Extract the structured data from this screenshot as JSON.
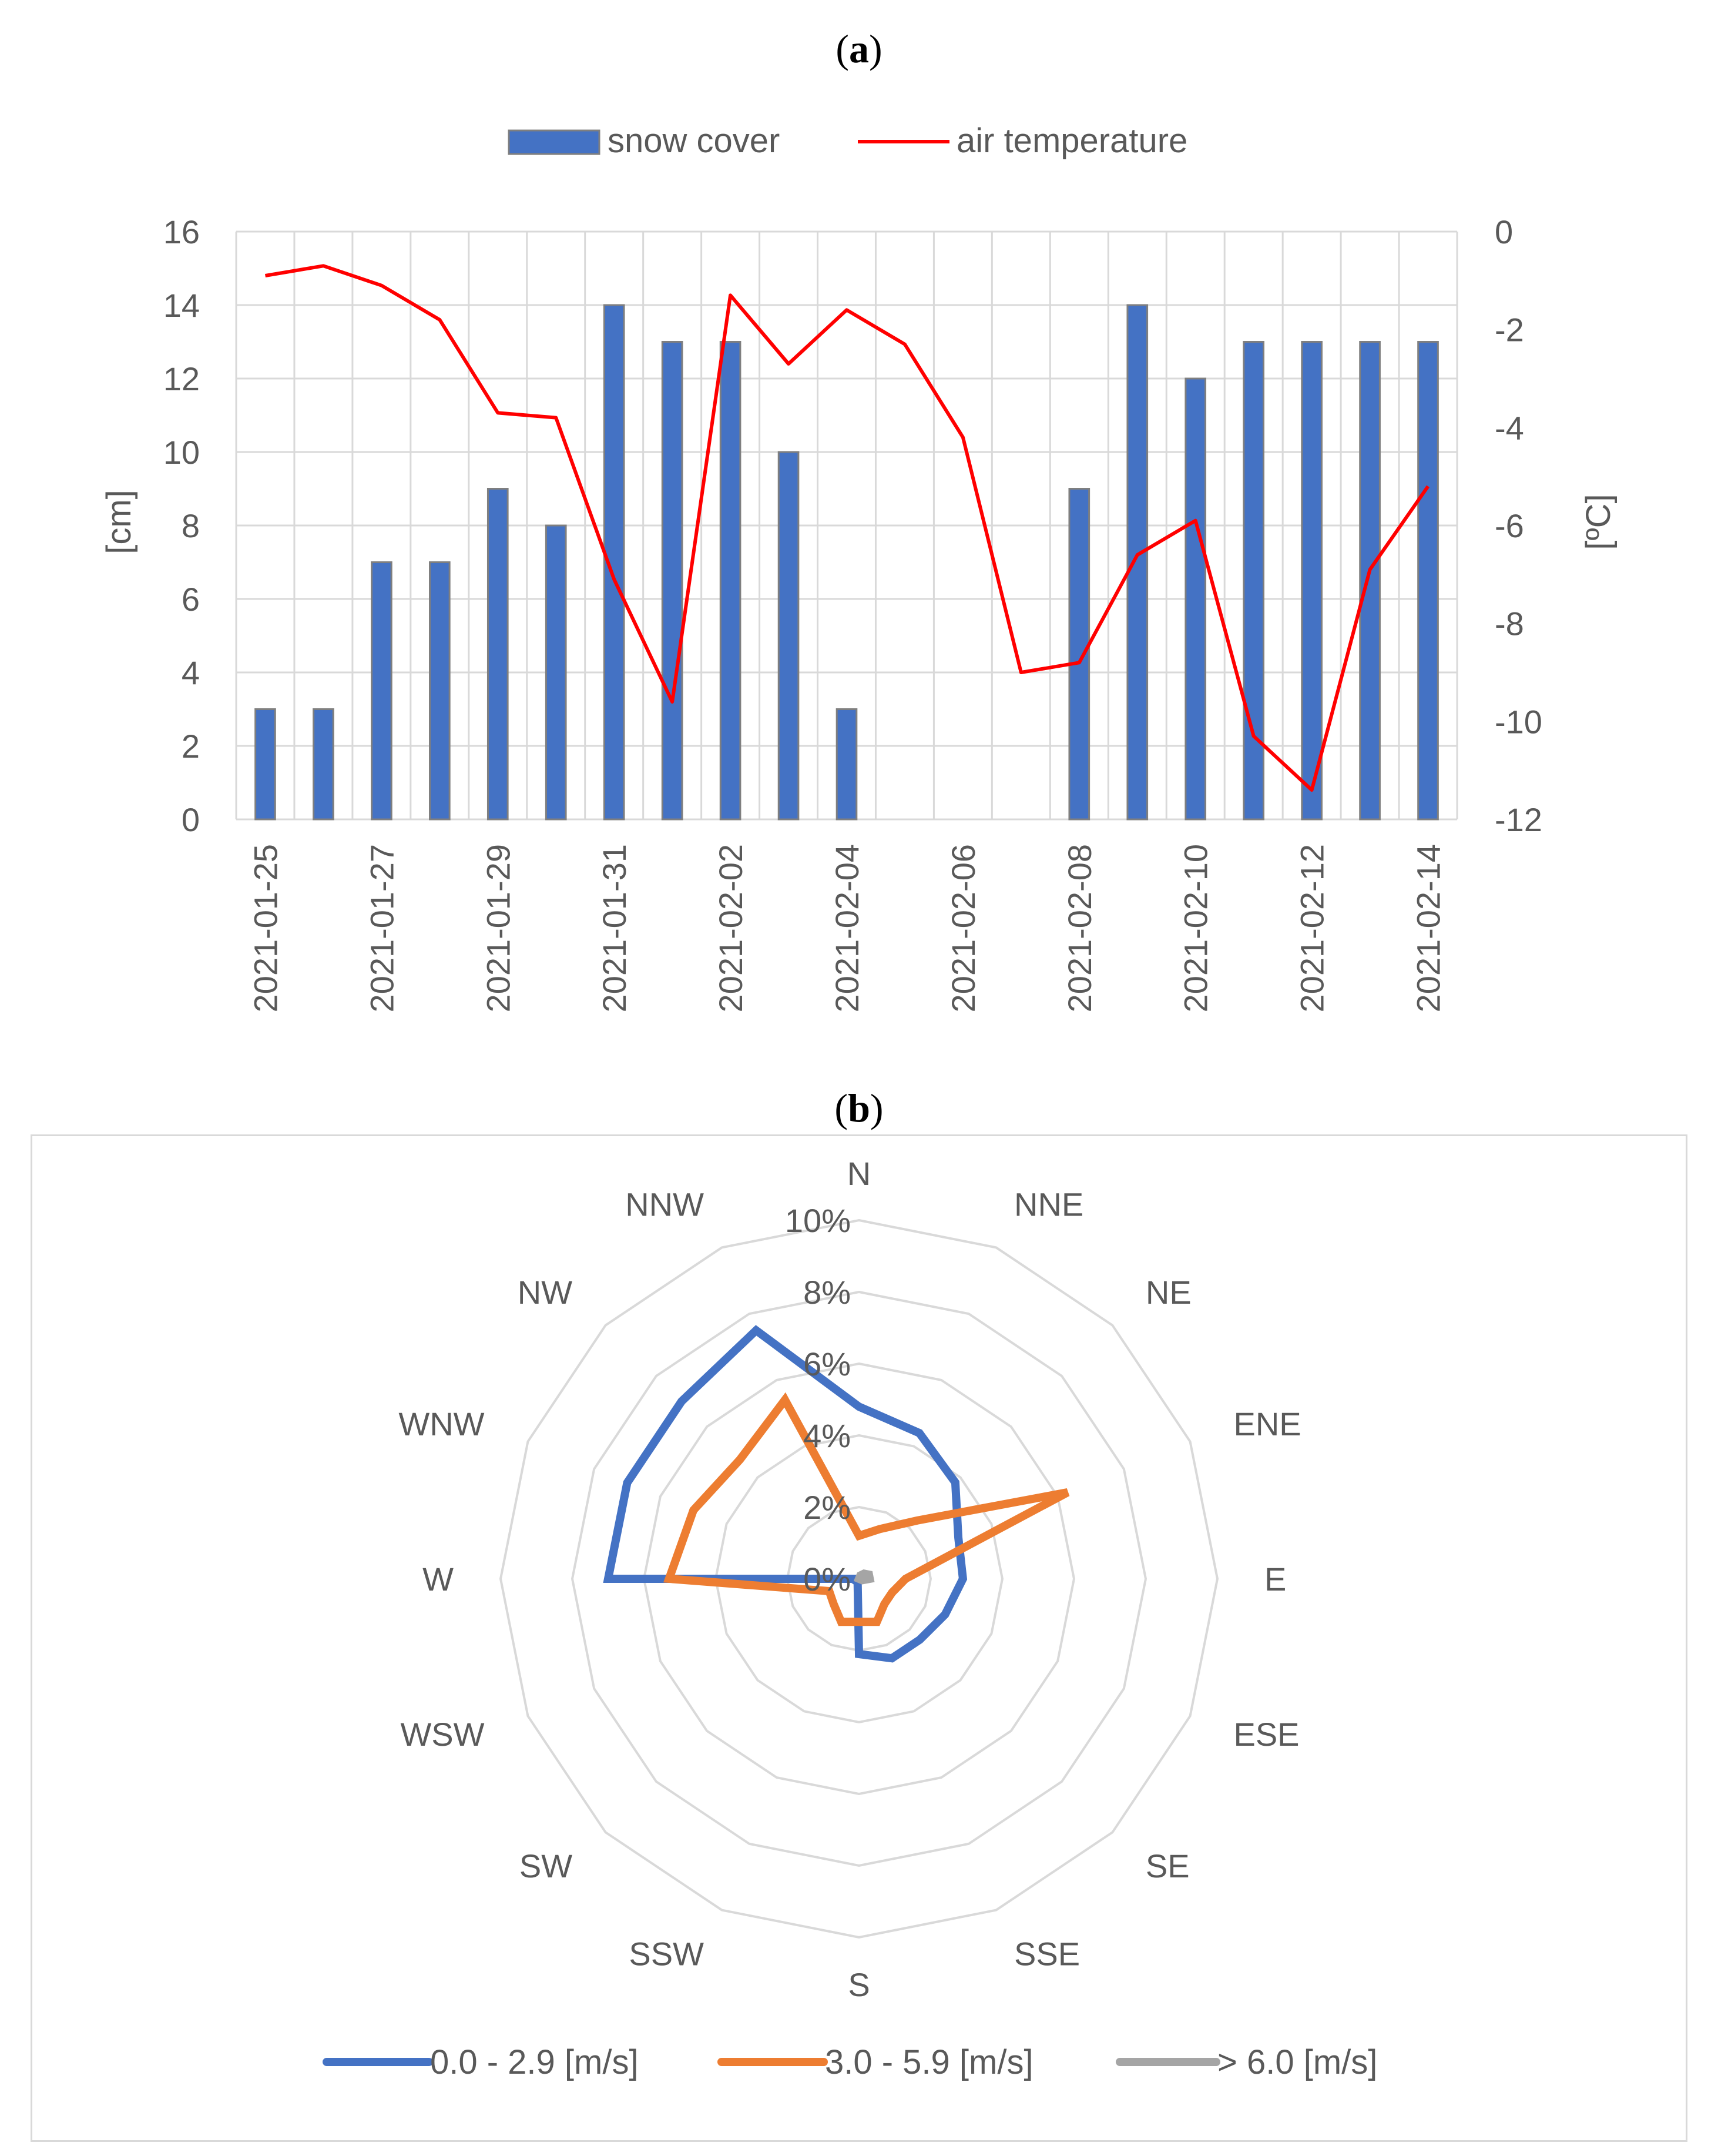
{
  "panel_a": {
    "label_open": "(",
    "label_letter": "a",
    "label_close": ")"
  },
  "panel_b": {
    "label_open": "(",
    "label_letter": "b",
    "label_close": ")"
  },
  "colors": {
    "snow_bar": "#4472c4",
    "snow_bar_edge": "#7f7f7f",
    "temperature": "#ff0000",
    "grid": "#d9d9d9",
    "series_low": "#4472c4",
    "series_mid": "#ed7d31",
    "series_high": "#a5a5a5"
  },
  "chart_data": [
    {
      "type": "bar",
      "title": "",
      "legend": [
        "snow cover",
        "air temperature"
      ],
      "categories": [
        "2021-01-25",
        "2021-01-26",
        "2021-01-27",
        "2021-01-28",
        "2021-01-29",
        "2021-01-30",
        "2021-01-31",
        "2021-02-01",
        "2021-02-02",
        "2021-02-03",
        "2021-02-04",
        "2021-02-05",
        "2021-02-06",
        "2021-02-07",
        "2021-02-08",
        "2021-02-09",
        "2021-02-10",
        "2021-02-11",
        "2021-02-12",
        "2021-02-13",
        "2021-02-14"
      ],
      "tick_labels": [
        "2021-01-25",
        "2021-01-27",
        "2021-01-29",
        "2021-01-31",
        "2021-02-02",
        "2021-02-04",
        "2021-02-06",
        "2021-02-08",
        "2021-02-10",
        "2021-02-12",
        "2021-02-14"
      ],
      "series": [
        {
          "name": "snow cover",
          "type": "bar",
          "axis": "left",
          "values": [
            3,
            3,
            7,
            7,
            9,
            8,
            14,
            13,
            13,
            10,
            3,
            0,
            0,
            0,
            9,
            14,
            12,
            13,
            13,
            13,
            13
          ]
        },
        {
          "name": "air temperature",
          "type": "line",
          "axis": "right",
          "values": [
            -0.9,
            -0.7,
            -1.1,
            -1.8,
            -3.7,
            -3.8,
            -7.1,
            -9.6,
            -1.3,
            -2.7,
            -1.6,
            -2.3,
            -4.2,
            -9.0,
            -8.8,
            -6.6,
            -5.9,
            -10.3,
            -11.4,
            -6.9,
            -5.2
          ]
        }
      ],
      "ylabel": "[cm]",
      "ylabel_right": "[ºC]",
      "ylim": [
        0,
        16
      ],
      "ylim_right": [
        -12,
        0
      ],
      "yticks": [
        "0",
        "2",
        "4",
        "6",
        "8",
        "10",
        "12",
        "14",
        "16"
      ],
      "yticks_right": [
        "0",
        "-2",
        "-4",
        "-6",
        "-8",
        "-10",
        "-12"
      ],
      "grid": true,
      "legend_position": "top"
    },
    {
      "type": "radar",
      "title": "",
      "directions": [
        "N",
        "NNE",
        "NE",
        "ENE",
        "E",
        "ESE",
        "SE",
        "SSE",
        "S",
        "SSW",
        "SW",
        "WSW",
        "W",
        "WNW",
        "NW",
        "NNW"
      ],
      "radial_ticks": [
        "0%",
        "2%",
        "4%",
        "6%",
        "8%",
        "10%"
      ],
      "rlim": [
        0,
        10
      ],
      "series": [
        {
          "name": "0.0 - 2.9 [m/s]",
          "values": [
            4.8,
            4.4,
            3.8,
            3.0,
            2.9,
            2.6,
            2.4,
            2.4,
            2.1,
            0.1,
            0.1,
            0.0,
            7.0,
            7.0,
            7.0,
            7.5
          ]
        },
        {
          "name": "3.0 - 5.9 [m/s]",
          "values": [
            1.2,
            1.5,
            2.3,
            6.3,
            1.3,
            1.0,
            1.0,
            1.3,
            1.2,
            1.3,
            1.0,
            0.9,
            5.3,
            5.0,
            4.7,
            5.4
          ]
        },
        {
          "name": "> 6.0 [m/s]",
          "values": [
            0.0,
            0.1,
            0.2,
            0.3,
            0.3,
            0.1,
            0.0,
            0.0,
            0.0,
            0.0,
            0.0,
            0.0,
            0.0,
            0.0,
            0.0,
            0.0
          ]
        }
      ],
      "legend_position": "bottom",
      "grid": true
    }
  ]
}
